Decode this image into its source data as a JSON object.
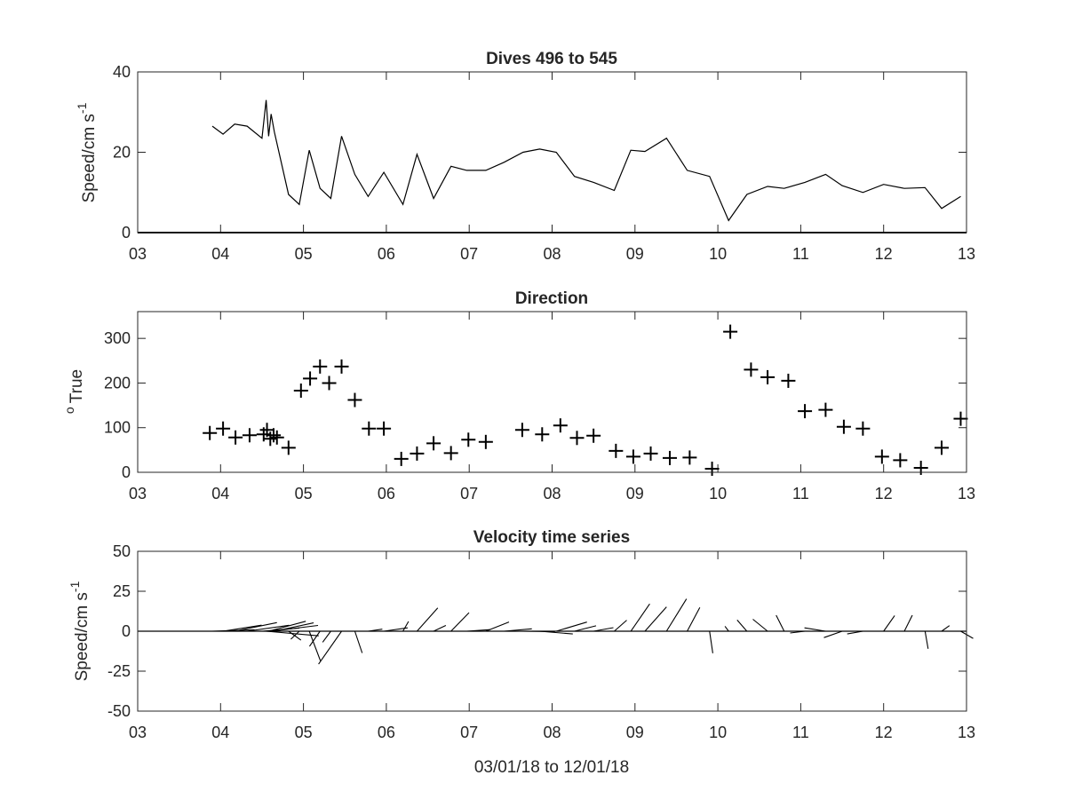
{
  "chart_data": [
    {
      "type": "line",
      "title": "Dives 496 to 545",
      "xlabel": "",
      "ylabel": "Speed/cm s",
      "ylabel_sup": "-1",
      "xlim": [
        3,
        13
      ],
      "ylim": [
        0,
        40
      ],
      "xticks": [
        "03",
        "04",
        "05",
        "06",
        "07",
        "08",
        "09",
        "10",
        "11",
        "12",
        "13"
      ],
      "yticks": [
        "0",
        "20",
        "40"
      ],
      "grid": false,
      "series": [
        {
          "x": [
            3.9,
            4.03,
            4.17,
            4.32,
            4.5,
            4.55,
            4.58,
            4.61,
            4.65,
            4.82,
            4.95,
            5.07,
            5.2,
            5.33,
            5.46,
            5.62,
            5.78,
            5.97,
            6.2,
            6.37,
            6.57,
            6.78,
            6.97,
            7.2,
            7.42,
            7.65,
            7.85,
            8.05,
            8.27,
            8.5,
            8.75,
            8.95,
            9.12,
            9.38,
            9.63,
            9.9,
            10.13,
            10.35,
            10.6,
            10.8,
            11.05,
            11.3,
            11.5,
            11.75,
            12.0,
            12.25,
            12.5,
            12.7,
            12.93
          ],
          "values": [
            26.5,
            24.5,
            27,
            26.5,
            23.5,
            33,
            24,
            29.5,
            25,
            9.5,
            7,
            20.5,
            11,
            8.5,
            24,
            14.5,
            9,
            15,
            7,
            19.5,
            8.5,
            16.5,
            15.5,
            15.5,
            17.5,
            20,
            20.8,
            20,
            14,
            12.5,
            10.5,
            20.5,
            20.2,
            23.5,
            15.5,
            14,
            3,
            9.5,
            11.5,
            11,
            12.5,
            14.5,
            11.7,
            10,
            12,
            11,
            11.2,
            6,
            9
          ]
        }
      ]
    },
    {
      "type": "scatter",
      "title": "Direction",
      "xlabel": "",
      "ylabel": "True",
      "ylabel_sup": "o",
      "xlim": [
        3,
        13
      ],
      "ylim": [
        0,
        360
      ],
      "xticks": [
        "03",
        "04",
        "05",
        "06",
        "07",
        "08",
        "09",
        "10",
        "11",
        "12",
        "13"
      ],
      "yticks": [
        "0",
        "100",
        "200",
        "300"
      ],
      "grid": false,
      "series": [
        {
          "x": [
            3.87,
            4.03,
            4.18,
            4.35,
            4.52,
            4.56,
            4.6,
            4.64,
            4.68,
            4.82,
            4.97,
            5.08,
            5.2,
            5.31,
            5.46,
            5.62,
            5.79,
            5.97,
            6.18,
            6.37,
            6.57,
            6.78,
            6.99,
            7.2,
            7.64,
            7.88,
            8.1,
            8.3,
            8.5,
            8.77,
            8.98,
            9.19,
            9.42,
            9.66,
            9.93,
            10.15,
            10.4,
            10.6,
            10.85,
            11.05,
            11.3,
            11.52,
            11.75,
            11.98,
            12.2,
            12.45,
            12.7,
            12.93
          ],
          "values": [
            88,
            98,
            78,
            83,
            85,
            95,
            75,
            83,
            78,
            55,
            183,
            210,
            237,
            200,
            237,
            162,
            98,
            98,
            30,
            42,
            65,
            43,
            73,
            68,
            95,
            85,
            105,
            77,
            82,
            48,
            35,
            42,
            32,
            33,
            8,
            315,
            230,
            213,
            205,
            137,
            140,
            102,
            98,
            35,
            27,
            10,
            55,
            120
          ]
        }
      ]
    },
    {
      "type": "stick",
      "title": "Velocity time series",
      "xlabel": "03/01/18 to 12/01/18",
      "ylabel": "Speed/cm s",
      "ylabel_sup": "-1",
      "xlim": [
        3,
        13
      ],
      "ylim": [
        -50,
        50
      ],
      "xticks": [
        "03",
        "04",
        "05",
        "06",
        "07",
        "08",
        "09",
        "10",
        "11",
        "12",
        "13"
      ],
      "yticks": [
        "50",
        "25",
        "0",
        "-25",
        "-50"
      ],
      "grid": false,
      "series": [
        {
          "x": [
            3.9,
            4.03,
            4.17,
            4.32,
            4.5,
            4.55,
            4.58,
            4.61,
            4.65,
            4.82,
            4.95,
            5.07,
            5.2,
            5.33,
            5.46,
            5.62,
            5.78,
            5.97,
            6.2,
            6.37,
            6.57,
            6.78,
            6.97,
            7.2,
            7.42,
            7.65,
            7.85,
            8.05,
            8.27,
            8.5,
            8.75,
            8.95,
            9.12,
            9.38,
            9.63,
            9.9,
            10.13,
            10.35,
            10.6,
            10.8,
            11.05,
            11.3,
            11.5,
            11.75,
            12.0,
            12.25,
            12.5,
            12.7,
            12.93
          ],
          "u": [
            26.4,
            24.1,
            26.4,
            26.3,
            23.4,
            32.9,
            23.2,
            29.3,
            24.5,
            7.8,
            -5.3,
            7.0,
            -6.6,
            -5.1,
            -14.4,
            4.6,
            8.9,
            14.9,
            3.5,
            13.0,
            7.7,
            11.3,
            14.8,
            14.5,
            17.4,
            19.9,
            20.7,
            19.2,
            13.5,
            12.4,
            7.8,
            11.8,
            13.5,
            12.5,
            7.9,
            2.0,
            -2.3,
            -6.1,
            -9.2,
            -5.0,
            -9.2,
            -13.2,
            -11.4,
            -9.8,
            6.9,
            5.0,
            1.9,
            4.9,
            7.8
          ],
          "v": [
            0.9,
            3.8,
            5.4,
            3.7,
            2.0,
            -2.9,
            6.2,
            3.6,
            5.2,
            -5.6,
            -5.0,
            -18.5,
            -9.5,
            -6.9,
            -20.6,
            -13.6,
            1.3,
            2.1,
            6.1,
            14.6,
            3.6,
            11.6,
            1.0,
            5.8,
            1.5,
            -0.3,
            -1.7,
            5.7,
            3.4,
            2.2,
            6.9,
            17.1,
            15.2,
            20.2,
            14.9,
            -13.8,
            3.1,
            7.0,
            7.5,
            10.0,
            -1.1,
            2.1,
            -4.0,
            -1.7,
            9.8,
            10.0,
            -11.0,
            3.5,
            -4.5
          ]
        }
      ]
    }
  ]
}
